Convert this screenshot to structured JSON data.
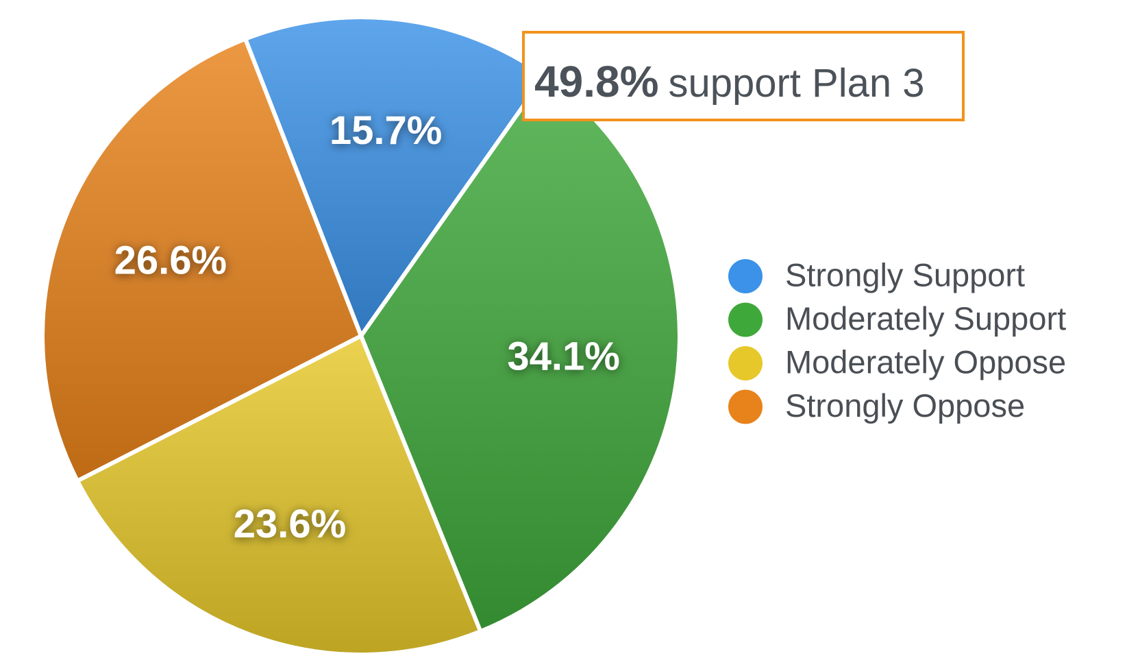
{
  "chart_data": {
    "type": "pie",
    "categories": [
      "Strongly Support",
      "Moderately Support",
      "Moderately Oppose",
      "Strongly Oppose"
    ],
    "values": [
      15.7,
      34.1,
      23.6,
      26.6
    ],
    "value_labels": [
      "15.7%",
      "34.1%",
      "23.6%",
      "26.6%"
    ],
    "colors": [
      "#3b92e8",
      "#3fa83a",
      "#e6c82a",
      "#e8821a"
    ],
    "annotation": {
      "emphasis": "49.8%",
      "text": "support Plan 3"
    },
    "legend": "right"
  }
}
